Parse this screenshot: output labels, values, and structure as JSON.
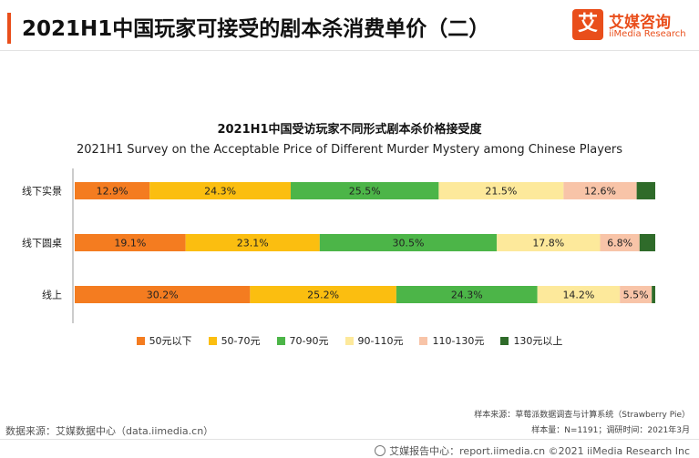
{
  "header": {
    "title": "2021H1中国玩家可接受的剧本杀消费单价（二）",
    "logo_mark": "艾",
    "logo_cn": "艾媒咨询",
    "logo_en": "iiMedia Research"
  },
  "chart_data": {
    "type": "bar",
    "orientation": "horizontal",
    "stacked": true,
    "percent": true,
    "title": "2021H1中国受访玩家不同形式剧本杀价格接受度",
    "subtitle": "2021H1 Survey on the Acceptable Price of Different Murder Mystery among Chinese Players",
    "categories": [
      "线下实景",
      "线下圆桌",
      "线上"
    ],
    "series": [
      {
        "name": "50元以下",
        "color": "#f47c20",
        "values": [
          12.9,
          19.1,
          30.2
        ],
        "labels": [
          "12.9%",
          "19.1%",
          "30.2%"
        ]
      },
      {
        "name": "50-70元",
        "color": "#fbbe10",
        "values": [
          24.3,
          23.1,
          25.2
        ],
        "labels": [
          "24.3%",
          "23.1%",
          "25.2%"
        ]
      },
      {
        "name": "70-90元",
        "color": "#4cb548",
        "values": [
          25.5,
          30.5,
          24.3
        ],
        "labels": [
          "25.5%",
          "30.5%",
          "24.3%"
        ]
      },
      {
        "name": "90-110元",
        "color": "#fde99b",
        "values": [
          21.5,
          17.8,
          14.2
        ],
        "labels": [
          "21.5%",
          "17.8%",
          "14.2%"
        ]
      },
      {
        "name": "110-130元",
        "color": "#f8c4a8",
        "values": [
          12.6,
          6.8,
          5.5
        ],
        "labels": [
          "12.6%",
          "6.8%",
          "5.5%"
        ]
      },
      {
        "name": "130元以上",
        "color": "#2f6b2a",
        "values": [
          3.2,
          2.7,
          0.6
        ],
        "labels": [
          "",
          "",
          ""
        ]
      }
    ],
    "legend_position": "bottom",
    "grid": false
  },
  "footer": {
    "data_source": "数据来源：艾媒数据中心（data.iimedia.cn）",
    "sample_source": "样本来源：草莓派数据调查与计算系统（Strawberry Pie）",
    "sample_size": "样本量：N=1191；调研时间：2021年3月",
    "report_center": "艾媒报告中心：report.iimedia.cn  ©2021  iiMedia Research  Inc"
  }
}
